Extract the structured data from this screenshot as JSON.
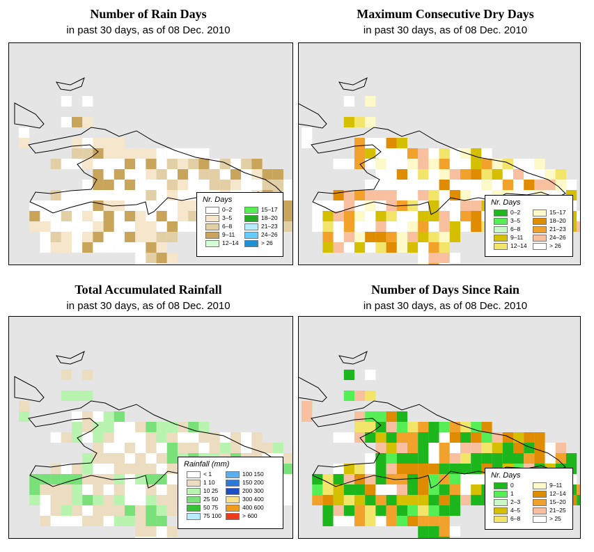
{
  "panels": [
    {
      "id": "rain_days",
      "title": "Number of Rain Days",
      "subtitle": "in past 30 days, as of  08 Dec. 2010",
      "legend_title": "Nr. Days",
      "legend": [
        {
          "label": "0–2",
          "color": "#ffffff"
        },
        {
          "label": "3–5",
          "color": "#f5e6cc"
        },
        {
          "label": "6–8",
          "color": "#e3cfa6"
        },
        {
          "label": "9–11",
          "color": "#c8a55a"
        },
        {
          "label": "12–14",
          "color": "#d4ffd4"
        },
        {
          "label": "15–17",
          "color": "#55ee55"
        },
        {
          "label": "18–20",
          "color": "#1fae1f"
        },
        {
          "label": "21–23",
          "color": "#b6eeff"
        },
        {
          "label": "24–26",
          "color": "#66ccff"
        },
        {
          "label": "> 26",
          "color": "#1e90d6"
        }
      ]
    },
    {
      "id": "dry_days",
      "title": "Maximum Consecutive Dry Days",
      "subtitle": "in past 30 days, as of  08 Dec. 2010",
      "legend_title": "Nr. Days",
      "legend": [
        {
          "label": "0–2",
          "color": "#1db61d"
        },
        {
          "label": "3–5",
          "color": "#55ee55"
        },
        {
          "label": "6–8",
          "color": "#c8f7c8"
        },
        {
          "label": "9–11",
          "color": "#d4c000"
        },
        {
          "label": "12–14",
          "color": "#f3e56a"
        },
        {
          "label": "15–17",
          "color": "#fdf9c8"
        },
        {
          "label": "18–20",
          "color": "#e08c00"
        },
        {
          "label": "21–23",
          "color": "#f2a22a"
        },
        {
          "label": "24–26",
          "color": "#f9c0a0"
        },
        {
          "label": "> 26",
          "color": "#ffffff"
        }
      ]
    },
    {
      "id": "rainfall",
      "title": "Total Accumulated Rainfall",
      "subtitle": "in past 30 days, as of  08 Dec. 2010",
      "legend_title": "Rainfall (mm)",
      "legend": [
        {
          "label": "< 1",
          "color": "#ffffff"
        },
        {
          "label": "1   10",
          "color": "#ecdcc0"
        },
        {
          "label": "10   25",
          "color": "#b8f4b0"
        },
        {
          "label": "25   50",
          "color": "#7ae07a"
        },
        {
          "label": "50   75",
          "color": "#32c232"
        },
        {
          "label": "75   100",
          "color": "#b6eeff"
        },
        {
          "label": "100   150",
          "color": "#5aaeee"
        },
        {
          "label": "150   200",
          "color": "#2a7ad6"
        },
        {
          "label": "200   300",
          "color": "#1c4fc6"
        },
        {
          "label": "300   400",
          "color": "#f9e08a"
        },
        {
          "label": "400   600",
          "color": "#f29a1a"
        },
        {
          "label": "> 600",
          "color": "#ee3a1a"
        }
      ]
    },
    {
      "id": "since_rain",
      "title": "Number of Days Since Rain",
      "subtitle": "in past 30 days, as of  08 Dec. 2010",
      "legend_title": "Nr. Days",
      "legend": [
        {
          "label": "0",
          "color": "#1db61d"
        },
        {
          "label": "1",
          "color": "#55ee55"
        },
        {
          "label": "2–3",
          "color": "#c8f7c8"
        },
        {
          "label": "4–5",
          "color": "#d4c000"
        },
        {
          "label": "6–8",
          "color": "#f3e56a"
        },
        {
          "label": "9–11",
          "color": "#fdf9c8"
        },
        {
          "label": "12–14",
          "color": "#e08c00"
        },
        {
          "label": "15–20",
          "color": "#f2a22a"
        },
        {
          "label": "21–25",
          "color": "#f9c0a0"
        },
        {
          "label": "> 25",
          "color": "#ffffff"
        }
      ]
    }
  ]
}
